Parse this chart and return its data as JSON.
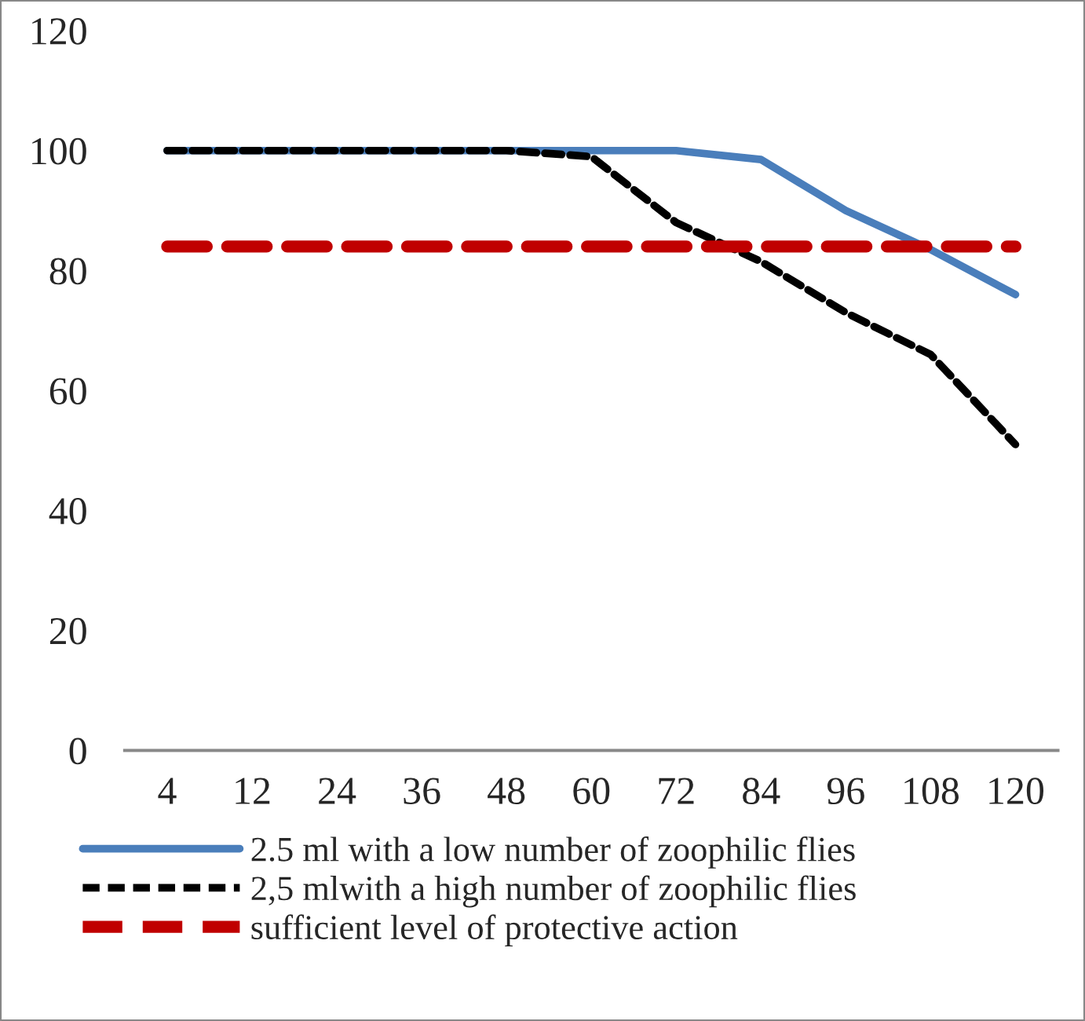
{
  "chart_data": {
    "type": "line",
    "categories": [
      "4",
      "12",
      "24",
      "36",
      "48",
      "60",
      "72",
      "84",
      "96",
      "108",
      "120"
    ],
    "series": [
      {
        "name": "2.5 ml with a low number of zoophilic flies",
        "color": "#4a7ebb",
        "line_style": "solid",
        "values": [
          100,
          100,
          100,
          100,
          100,
          100,
          100,
          98.5,
          90,
          83.5,
          76
        ]
      },
      {
        "name": "2,5 mlwith a high number of zoophilic flies",
        "color": "#000000",
        "line_style": "dashed",
        "values": [
          100,
          100,
          100,
          100,
          100,
          99,
          88,
          81.5,
          73,
          66,
          51
        ]
      },
      {
        "name": "sufficient level of protective action",
        "color": "#c00000",
        "line_style": "dashed",
        "values": [
          84,
          84,
          84,
          84,
          84,
          84,
          84,
          84,
          84,
          84,
          84
        ]
      }
    ],
    "ylim": [
      0,
      120
    ],
    "yticks": [
      0,
      20,
      40,
      60,
      80,
      100,
      120
    ],
    "grid": false,
    "legend": "bottom",
    "marker": "none"
  }
}
